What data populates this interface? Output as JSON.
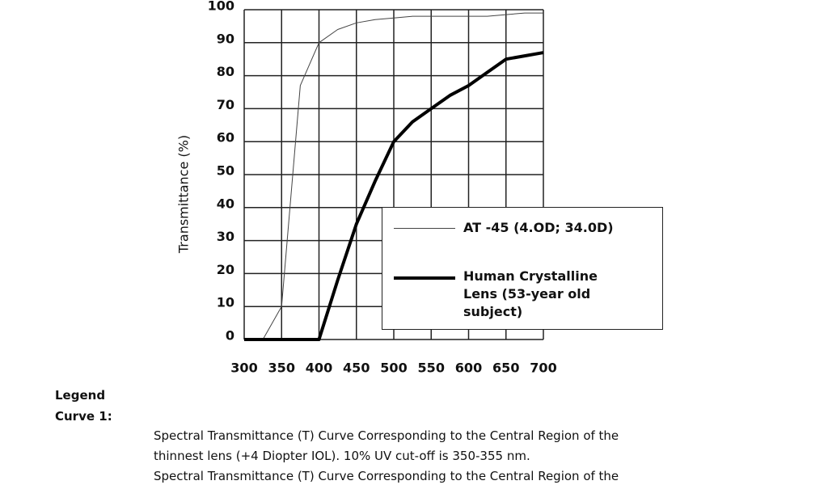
{
  "chart_data": {
    "type": "line",
    "ylabel": "Transmittance (%)",
    "x": [
      300,
      325,
      350,
      375,
      400,
      425,
      450,
      475,
      500,
      525,
      550,
      575,
      600,
      625,
      650,
      675,
      700
    ],
    "series": [
      {
        "name": "AT -45 (4.OD; 34.0D)",
        "color": "#444444",
        "width": 1,
        "values": [
          0,
          0,
          10,
          77,
          90,
          94,
          96,
          97,
          97.5,
          98,
          98,
          98,
          98,
          98,
          98.5,
          99,
          99
        ]
      },
      {
        "name": "Human Crystalline Lens (53-year old subject)",
        "color": "#000000",
        "width": 4,
        "values": [
          0,
          0,
          0,
          0,
          0,
          18,
          35,
          48,
          60,
          66,
          70,
          74,
          77,
          81,
          85,
          86,
          87
        ]
      }
    ],
    "xlim": [
      300,
      700
    ],
    "xticks": [
      300,
      350,
      400,
      450,
      500,
      550,
      600,
      650,
      700
    ],
    "ylim": [
      0,
      100
    ],
    "yticks": [
      0,
      10,
      20,
      30,
      40,
      50,
      60,
      70,
      80,
      90,
      100
    ],
    "grid": true
  },
  "notes": {
    "heading": "Legend",
    "label": "Curve 1:",
    "lines": [
      "Spectral Transmittance (T) Curve Corresponding to the Central Region of the",
      "thinnest lens (+4  Diopter IOL).  10% UV cut-off is 350-355 nm.",
      "Spectral Transmittance (T) Curve Corresponding to the Central Region of the"
    ]
  }
}
